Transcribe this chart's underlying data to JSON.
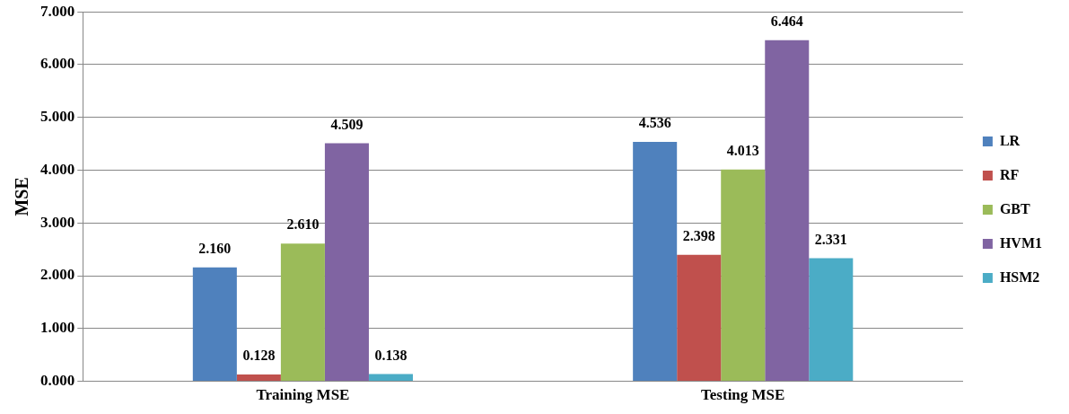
{
  "chart_data": {
    "type": "bar",
    "ylabel": "MSE",
    "categories": [
      "Training MSE",
      "Testing MSE"
    ],
    "series": [
      {
        "name": "LR",
        "color": "#4f81bd",
        "values": [
          2.16,
          4.536
        ],
        "value_labels": [
          "2.160",
          "4.536"
        ]
      },
      {
        "name": "RF",
        "color": "#c0504d",
        "values": [
          0.128,
          2.398
        ],
        "value_labels": [
          "0.128",
          "2.398"
        ]
      },
      {
        "name": "GBT",
        "color": "#9bbb59",
        "values": [
          2.61,
          4.013
        ],
        "value_labels": [
          "2.610",
          "4.013"
        ]
      },
      {
        "name": "HVM1",
        "color": "#8064a2",
        "values": [
          4.509,
          6.464
        ],
        "value_labels": [
          "4.509",
          "6.464"
        ]
      },
      {
        "name": "HSM2",
        "color": "#4bacc6",
        "values": [
          0.138,
          2.331
        ],
        "value_labels": [
          "0.138",
          "2.331"
        ]
      }
    ],
    "ylim": [
      0,
      7
    ],
    "yticks": [
      {
        "value": 0,
        "label": "0.000"
      },
      {
        "value": 1,
        "label": "1.000"
      },
      {
        "value": 2,
        "label": "2.000"
      },
      {
        "value": 3,
        "label": "3.000"
      },
      {
        "value": 4,
        "label": "4.000"
      },
      {
        "value": 5,
        "label": "5.000"
      },
      {
        "value": 6,
        "label": "6.000"
      },
      {
        "value": 7,
        "label": "7.000"
      }
    ],
    "grid": "y",
    "legend": "right"
  }
}
